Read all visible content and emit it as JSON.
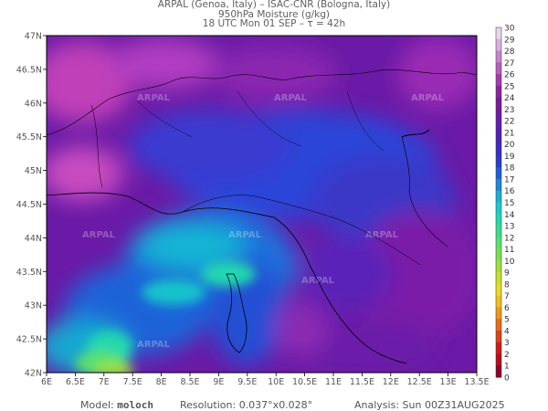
{
  "header": {
    "line1": "ARPAL (Genoa, Italy)  –  ISAC-CNR (Bologna, Italy)",
    "line2": "950hPa Moisture (g/kg)",
    "line3": "18 UTC Mon 01 SEP  –  τ = 42h"
  },
  "map": {
    "region": "Northern Italy / Ligurian Sea",
    "lon_range": [
      6,
      13.5
    ],
    "lat_range": [
      42,
      47
    ],
    "lon_labels": [
      "6E",
      "6.5E",
      "7E",
      "7.5E",
      "8E",
      "8.5E",
      "9E",
      "9.5E",
      "10E",
      "10.5E",
      "11E",
      "11.5E",
      "12E",
      "12.5E",
      "13E",
      "13.5E"
    ],
    "lat_labels": [
      "47N",
      "46.5N",
      "46N",
      "45.5N",
      "45N",
      "44.5N",
      "44N",
      "43.5N",
      "43N",
      "42.5N",
      "42N"
    ],
    "watermark": "ARPAL"
  },
  "colorbar": {
    "labels": [
      "30",
      "29",
      "28",
      "27",
      "26",
      "25",
      "24",
      "23",
      "22",
      "21",
      "20",
      "19",
      "18",
      "17",
      "16",
      "15",
      "14",
      "13",
      "12",
      "11",
      "10",
      "9",
      "8",
      "7",
      "6",
      "5",
      "4",
      "3",
      "2",
      "1",
      "0"
    ],
    "colors": [
      "#ffffff",
      "#e8d8ee",
      "#d9b0df",
      "#c884cf",
      "#b85ebe",
      "#a83aac",
      "#8e22a0",
      "#7a1a9c",
      "#6a1aa6",
      "#5a1fb2",
      "#4a22bc",
      "#3a2cc6",
      "#2a3cd0",
      "#1e5fd8",
      "#1c88d8",
      "#18b0d4",
      "#16cccc",
      "#20d8b0",
      "#38dc8c",
      "#58e070",
      "#7ae050",
      "#a0e038",
      "#c8e028",
      "#e8dc20",
      "#f0c018",
      "#f09818",
      "#e86c18",
      "#e04018",
      "#d01818",
      "#b80c1c",
      "#900028"
    ]
  },
  "footer": {
    "model_label": "Model:",
    "model_value": "moloch",
    "resolution_label": "Resolution:",
    "resolution_value": "0.037°x0.028°",
    "analysis_label": "Analysis:",
    "analysis_value": "Sun 00Z31AUG2025"
  }
}
